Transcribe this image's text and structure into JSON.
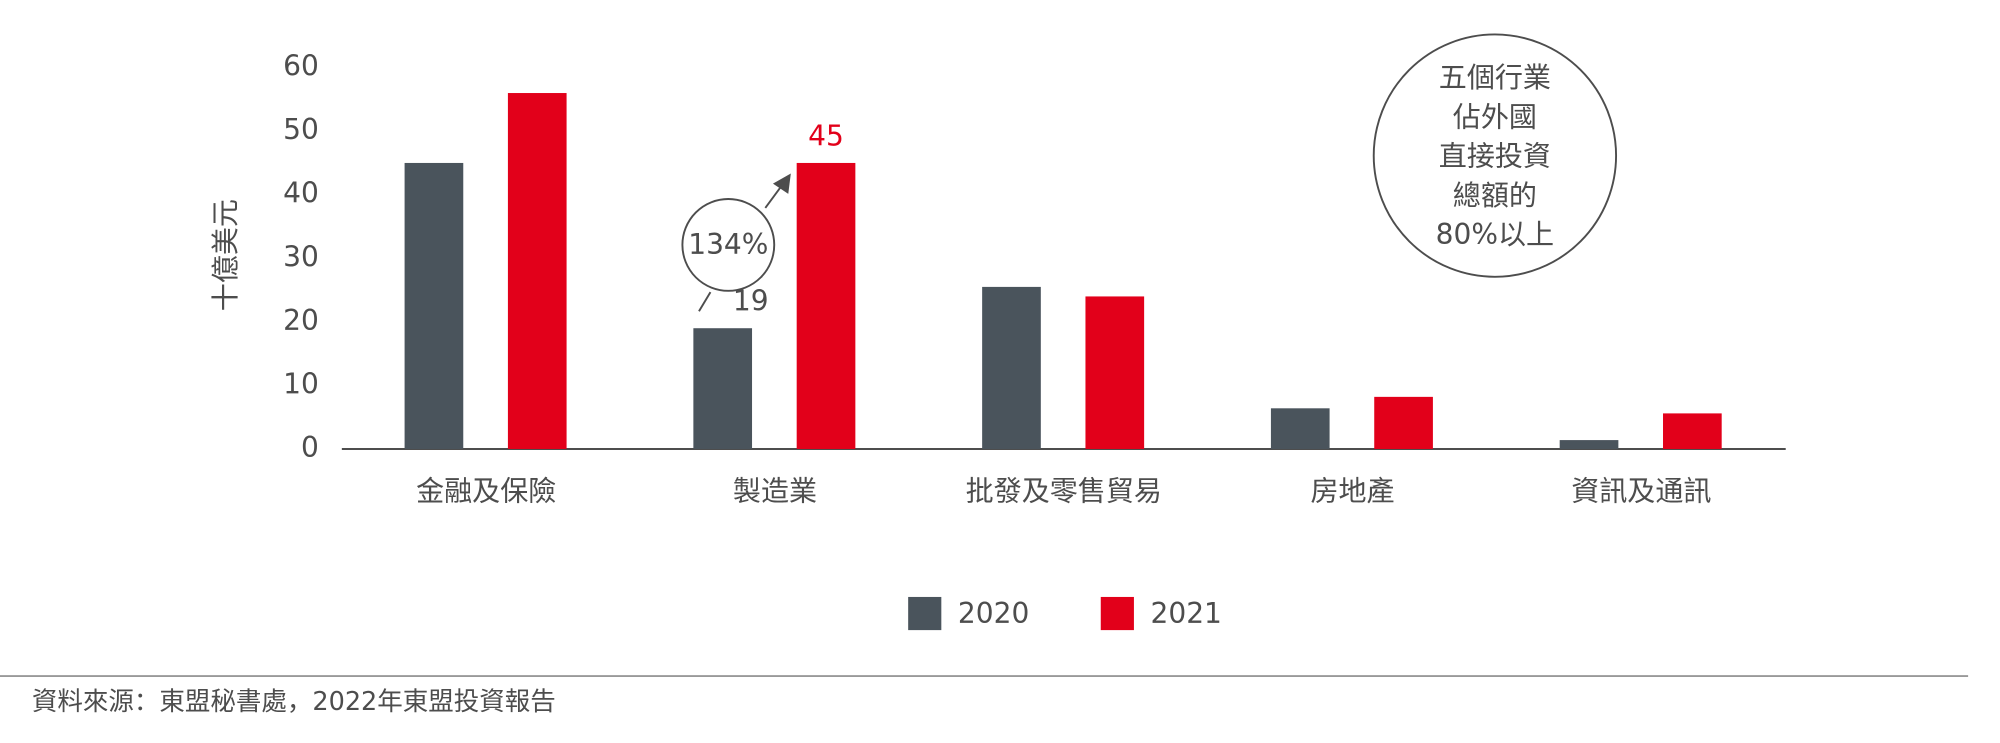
{
  "chart_data": {
    "type": "bar",
    "y_label": "十億美元",
    "categories": [
      "金融及保險",
      "製造業",
      "批發及零售貿易",
      "房地產",
      "資訊及通訊"
    ],
    "series": [
      {
        "name": "2020",
        "color": "#4a545c",
        "values": [
          45,
          19,
          25.5,
          6.4,
          1.4
        ],
        "value_labels": [
          null,
          "19",
          null,
          null,
          null
        ],
        "label_color": "#4d4d4d"
      },
      {
        "name": "2021",
        "color": "#e2001a",
        "values": [
          56,
          45,
          24,
          8.2,
          5.6
        ],
        "value_labels": [
          null,
          "45",
          null,
          null,
          null
        ],
        "label_color": "#e2001a"
      }
    ],
    "ylim": [
      0,
      60
    ],
    "yticks": [
      0,
      10,
      20,
      30,
      40,
      50,
      60
    ],
    "grid": false,
    "growth_annotation": "134%",
    "callout_lines": [
      "五個行業",
      "佔外國",
      "直接投資",
      "總額的",
      "80%以上"
    ],
    "source": "資料來源：東盟秘書處，2022年東盟投資報告"
  }
}
